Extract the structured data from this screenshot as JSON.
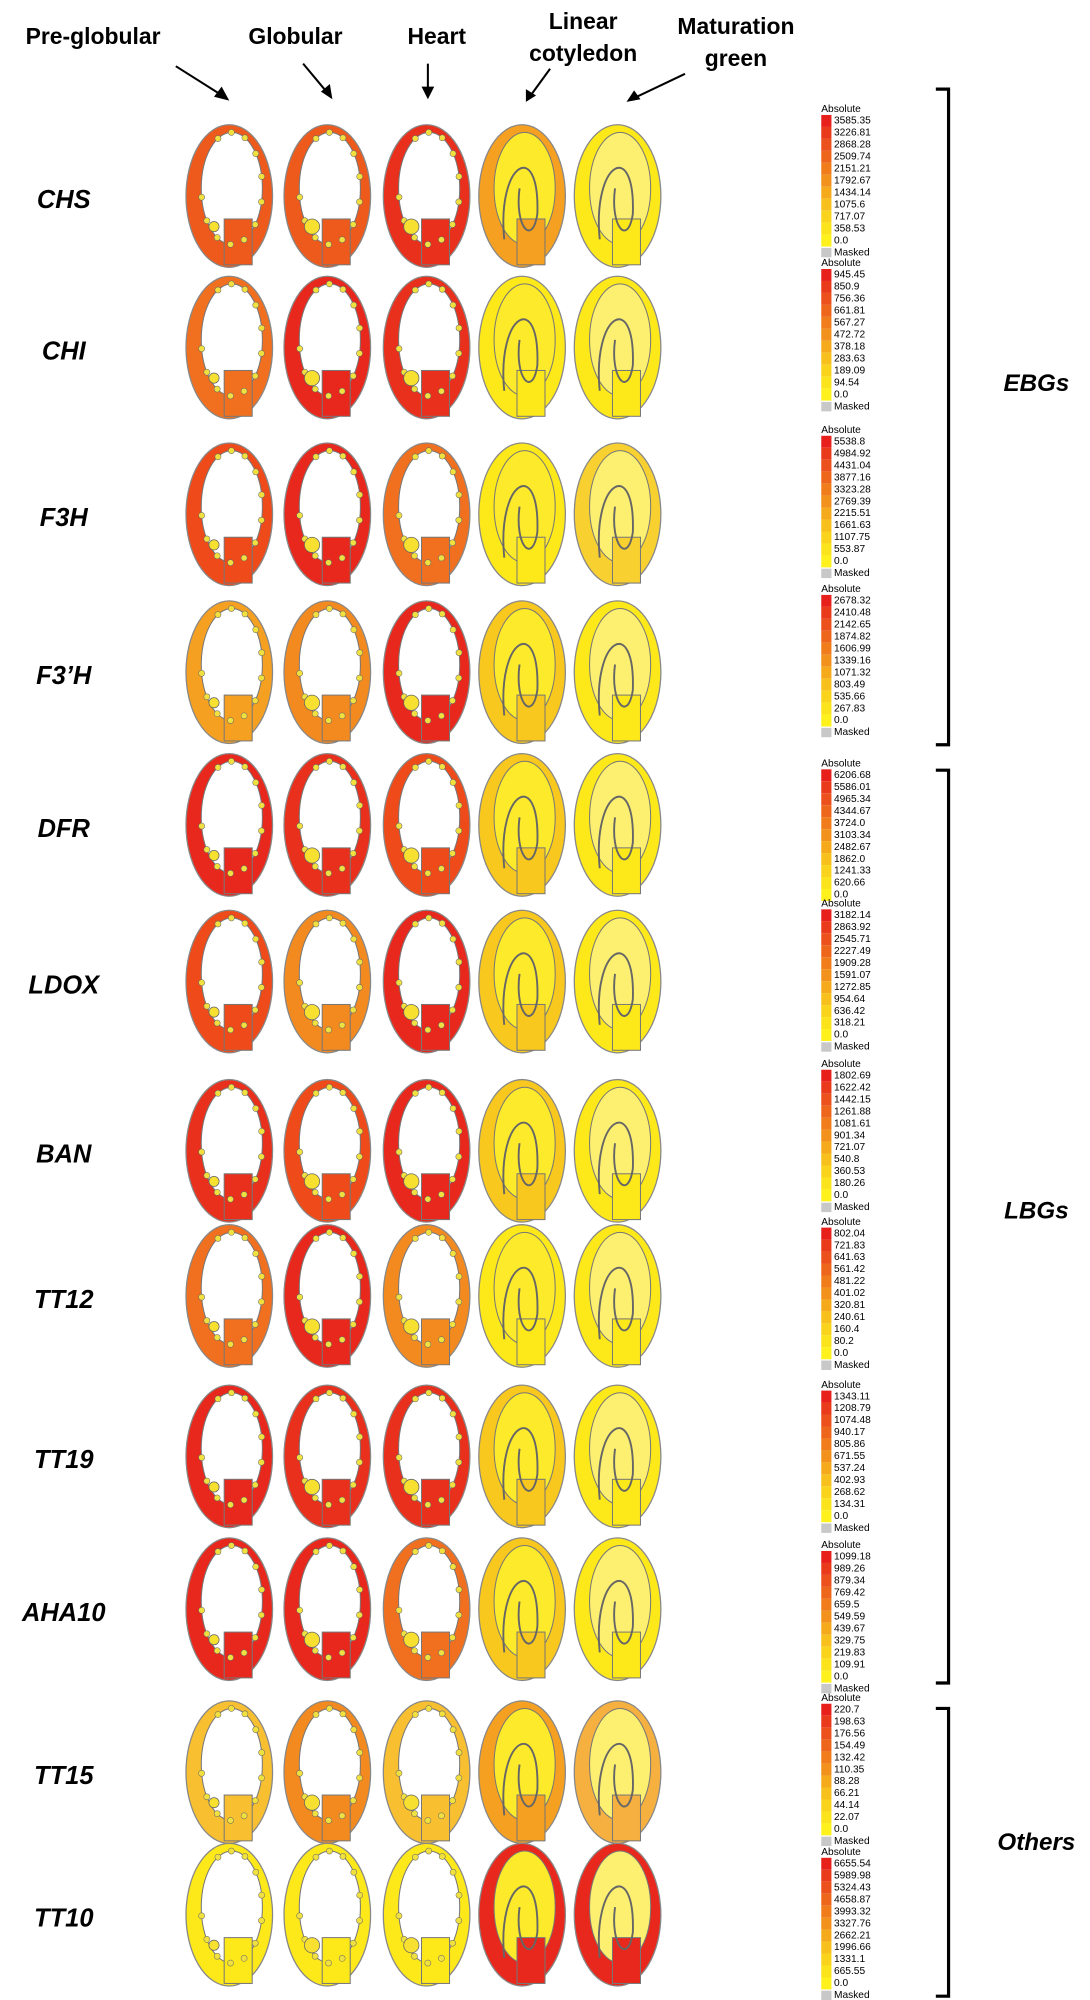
{
  "header": {
    "stages": [
      [
        "Pre-globular"
      ],
      [
        "Globular"
      ],
      [
        "Heart"
      ],
      [
        "Linear",
        "cotyledon"
      ],
      [
        "Maturation",
        "green"
      ]
    ]
  },
  "genes": [
    {
      "name": "CHS",
      "colors": [
        "#ee5a1c",
        "#ee5a1c",
        "#e8301c",
        "#f5a020",
        "#fde81a"
      ],
      "legend": {
        "title": "Absolute",
        "values": [
          "3585.35",
          "3226.81",
          "2868.28",
          "2509.74",
          "2151.21",
          "1792.67",
          "1434.14",
          "1075.6",
          "717.07",
          "358.53",
          "0.0"
        ],
        "masked": "Masked"
      }
    },
    {
      "name": "CHI",
      "colors": [
        "#f07020",
        "#e8281c",
        "#e8301c",
        "#fde81a",
        "#fde81a"
      ],
      "legend": {
        "title": "Absolute",
        "values": [
          "945.45",
          "850.9",
          "756.36",
          "661.81",
          "567.27",
          "472.72",
          "378.18",
          "283.63",
          "189.09",
          "94.54",
          "0.0"
        ],
        "masked": "Masked"
      }
    },
    {
      "name": "F3H",
      "colors": [
        "#ee4a1a",
        "#e8281c",
        "#f07020",
        "#fde81a",
        "#f8d030"
      ],
      "legend": {
        "title": "Absolute",
        "values": [
          "5538.8",
          "4984.92",
          "4431.04",
          "3877.16",
          "3323.28",
          "2769.39",
          "2215.51",
          "1661.63",
          "1107.75",
          "553.87",
          "0.0"
        ],
        "masked": "Masked"
      }
    },
    {
      "name": "F3’H",
      "colors": [
        "#f5a020",
        "#f28a20",
        "#e8281c",
        "#f8c81e",
        "#fde81a"
      ],
      "legend": {
        "title": "Absolute",
        "values": [
          "2678.32",
          "2410.48",
          "2142.65",
          "1874.82",
          "1606.99",
          "1339.16",
          "1071.32",
          "803.49",
          "535.66",
          "267.83",
          "0.0"
        ],
        "masked": "Masked"
      }
    },
    {
      "name": "DFR",
      "colors": [
        "#e8281c",
        "#e8301c",
        "#ee4a1a",
        "#f8c81e",
        "#fde81a"
      ],
      "legend": {
        "title": "Absolute",
        "values": [
          "6206.68",
          "5586.01",
          "4965.34",
          "4344.67",
          "3724.0",
          "3103.34",
          "2482.67",
          "1862.0",
          "1241.33",
          "620.66",
          "0.0"
        ]
      }
    },
    {
      "name": "LDOX",
      "colors": [
        "#ee4a1a",
        "#f28a20",
        "#e8281c",
        "#f8c81e",
        "#fde81a"
      ],
      "legend": {
        "title": "Absolute",
        "values": [
          "3182.14",
          "2863.92",
          "2545.71",
          "2227.49",
          "1909.28",
          "1591.07",
          "1272.85",
          "954.64",
          "636.42",
          "318.21",
          "0.0"
        ],
        "masked": "Masked"
      }
    },
    {
      "name": "BAN",
      "colors": [
        "#e8301c",
        "#ee4a1a",
        "#e8281c",
        "#f8c81e",
        "#fde81a"
      ],
      "legend": {
        "title": "Absolute",
        "values": [
          "1802.69",
          "1622.42",
          "1442.15",
          "1261.88",
          "1081.61",
          "901.34",
          "721.07",
          "540.8",
          "360.53",
          "180.26",
          "0.0"
        ],
        "masked": "Masked"
      }
    },
    {
      "name": "TT12",
      "colors": [
        "#f07020",
        "#e8281c",
        "#f28a20",
        "#fde81a",
        "#fde81a"
      ],
      "legend": {
        "title": "Absolute",
        "values": [
          "802.04",
          "721.83",
          "641.63",
          "561.42",
          "481.22",
          "401.02",
          "320.81",
          "240.61",
          "160.4",
          "80.2",
          "0.0"
        ],
        "masked": "Masked"
      }
    },
    {
      "name": "TT19",
      "colors": [
        "#e8281c",
        "#e8301c",
        "#e8301c",
        "#f8c81e",
        "#fde81a"
      ],
      "legend": {
        "title": "Absolute",
        "values": [
          "1343.11",
          "1208.79",
          "1074.48",
          "940.17",
          "805.86",
          "671.55",
          "537.24",
          "402.93",
          "268.62",
          "134.31",
          "0.0"
        ],
        "masked": "Masked"
      }
    },
    {
      "name": "AHA10",
      "colors": [
        "#e8281c",
        "#e8281c",
        "#f07020",
        "#f8c81e",
        "#fde81a"
      ],
      "legend": {
        "title": "Absolute",
        "values": [
          "1099.18",
          "989.26",
          "879.34",
          "769.42",
          "659.5",
          "549.59",
          "439.67",
          "329.75",
          "219.83",
          "109.91",
          "0.0"
        ],
        "masked": "Masked"
      }
    },
    {
      "name": "TT15",
      "colors": [
        "#f8c030",
        "#f28a20",
        "#f8c030",
        "#f5a020",
        "#f5b040"
      ],
      "legend": {
        "title": "Absolute",
        "values": [
          "220.7",
          "198.63",
          "176.56",
          "154.49",
          "132.42",
          "110.35",
          "88.28",
          "66.21",
          "44.14",
          "22.07",
          "0.0"
        ],
        "masked": "Masked"
      }
    },
    {
      "name": "TT10",
      "colors": [
        "#fde81a",
        "#fde81a",
        "#fde81a",
        "#e8281c",
        "#e8281c"
      ],
      "legend": {
        "title": "Absolute",
        "values": [
          "6655.54",
          "5989.98",
          "5324.43",
          "4658.87",
          "3993.32",
          "3327.76",
          "2662.21",
          "1996.66",
          "1331.1",
          "665.55",
          "0.0"
        ],
        "masked": "Masked"
      }
    }
  ],
  "groups": [
    {
      "label": "EBGs"
    },
    {
      "label": "LBGs"
    },
    {
      "label": "Others"
    }
  ]
}
